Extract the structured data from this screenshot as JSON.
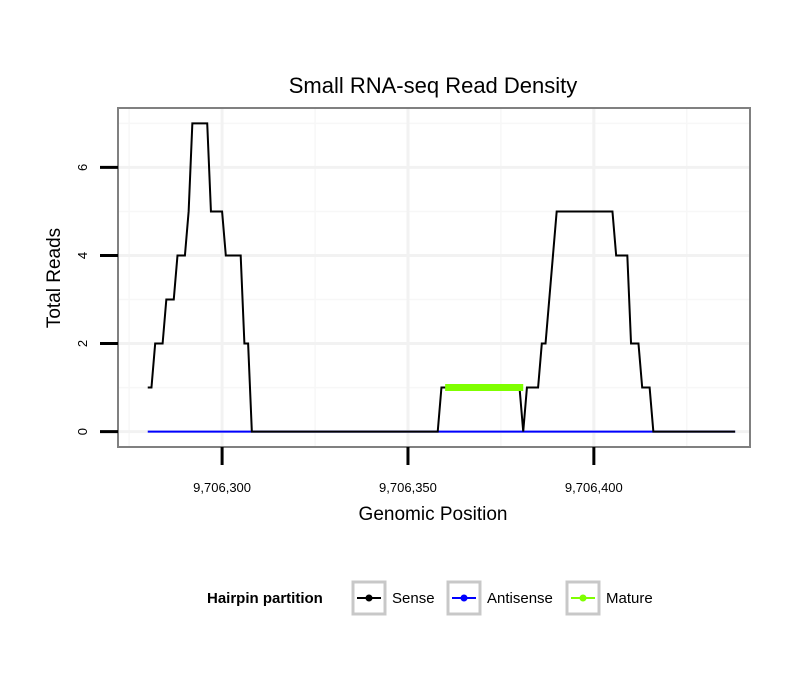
{
  "chart_data": {
    "type": "line",
    "title": "Small RNA-seq Read Density",
    "xlabel": "Genomic Position",
    "ylabel": "Total Reads",
    "xlim": [
      9706272,
      9706442
    ],
    "ylim": [
      -0.35,
      7.35
    ],
    "x_ticks": [
      {
        "value": 9706300,
        "label": "9,706,300"
      },
      {
        "value": 9706350,
        "label": "9,706,350"
      },
      {
        "value": 9706400,
        "label": "9,706,400"
      }
    ],
    "y_ticks": [
      {
        "value": 0,
        "label": "0"
      },
      {
        "value": 2,
        "label": "2"
      },
      {
        "value": 4,
        "label": "4"
      },
      {
        "value": 6,
        "label": "6"
      }
    ],
    "grid": true,
    "legend": {
      "title": "Hairpin partition",
      "position": "bottom",
      "entries": [
        {
          "name": "Sense",
          "color": "#000000"
        },
        {
          "name": "Antisense",
          "color": "#0000ff"
        },
        {
          "name": "Mature",
          "color": "#7fff00"
        }
      ]
    },
    "series": [
      {
        "name": "Sense",
        "color": "#000000",
        "points": [
          [
            9706280,
            1
          ],
          [
            9706281,
            1
          ],
          [
            9706282,
            2
          ],
          [
            9706283,
            2
          ],
          [
            9706284,
            2
          ],
          [
            9706285,
            3
          ],
          [
            9706286,
            3
          ],
          [
            9706287,
            3
          ],
          [
            9706288,
            4
          ],
          [
            9706289,
            4
          ],
          [
            9706290,
            4
          ],
          [
            9706291,
            5
          ],
          [
            9706292,
            7
          ],
          [
            9706293,
            7
          ],
          [
            9706294,
            7
          ],
          [
            9706295,
            7
          ],
          [
            9706296,
            7
          ],
          [
            9706297,
            5
          ],
          [
            9706298,
            5
          ],
          [
            9706299,
            5
          ],
          [
            9706300,
            5
          ],
          [
            9706301,
            4
          ],
          [
            9706302,
            4
          ],
          [
            9706303,
            4
          ],
          [
            9706304,
            4
          ],
          [
            9706305,
            4
          ],
          [
            9706306,
            2
          ],
          [
            9706307,
            2
          ],
          [
            9706308,
            0
          ],
          [
            9706309,
            0
          ],
          [
            9706358,
            0
          ],
          [
            9706359,
            1
          ],
          [
            9706380,
            1
          ],
          [
            9706381,
            0
          ],
          [
            9706382,
            1
          ],
          [
            9706383,
            1
          ],
          [
            9706384,
            1
          ],
          [
            9706385,
            1
          ],
          [
            9706386,
            2
          ],
          [
            9706387,
            2
          ],
          [
            9706388,
            3
          ],
          [
            9706389,
            4
          ],
          [
            9706390,
            5
          ],
          [
            9706391,
            5
          ],
          [
            9706395,
            5
          ],
          [
            9706400,
            5
          ],
          [
            9706405,
            5
          ],
          [
            9706406,
            4
          ],
          [
            9706407,
            4
          ],
          [
            9706408,
            4
          ],
          [
            9706409,
            4
          ],
          [
            9706410,
            2
          ],
          [
            9706411,
            2
          ],
          [
            9706412,
            2
          ],
          [
            9706413,
            1
          ],
          [
            9706414,
            1
          ],
          [
            9706415,
            1
          ],
          [
            9706416,
            0
          ],
          [
            9706417,
            0
          ],
          [
            9706438,
            0
          ]
        ]
      },
      {
        "name": "Antisense",
        "color": "#0000ff",
        "points": [
          [
            9706280,
            0
          ],
          [
            9706438,
            0
          ]
        ]
      },
      {
        "name": "Mature",
        "color": "#7fff00",
        "points": [
          [
            9706360,
            1
          ],
          [
            9706381,
            1
          ]
        ]
      }
    ]
  }
}
